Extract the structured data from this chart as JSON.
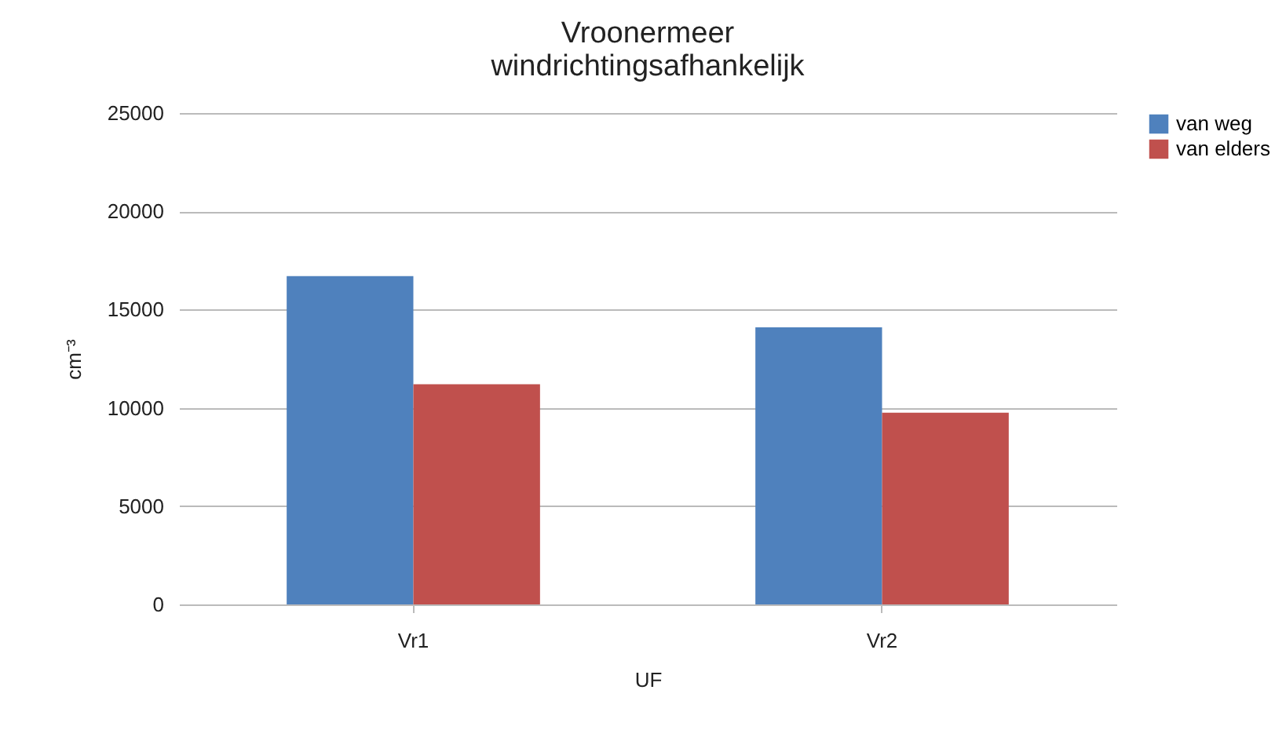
{
  "chart_data": {
    "type": "bar",
    "title": "Vroonermeer\nwindrichtingsafhankelijk",
    "xlabel": "UF",
    "ylabel": "cm⁻³",
    "categories": [
      "Vr1",
      "Vr2"
    ],
    "series": [
      {
        "name": "van weg",
        "color": "#4f81bd",
        "values": [
          16700,
          14100
        ]
      },
      {
        "name": "van elders",
        "color": "#c0504d",
        "values": [
          11200,
          9750
        ]
      }
    ],
    "ylim": [
      0,
      25000
    ],
    "yticks": [
      0,
      5000,
      10000,
      15000,
      20000,
      25000
    ],
    "grid": "y",
    "legend": "right"
  }
}
